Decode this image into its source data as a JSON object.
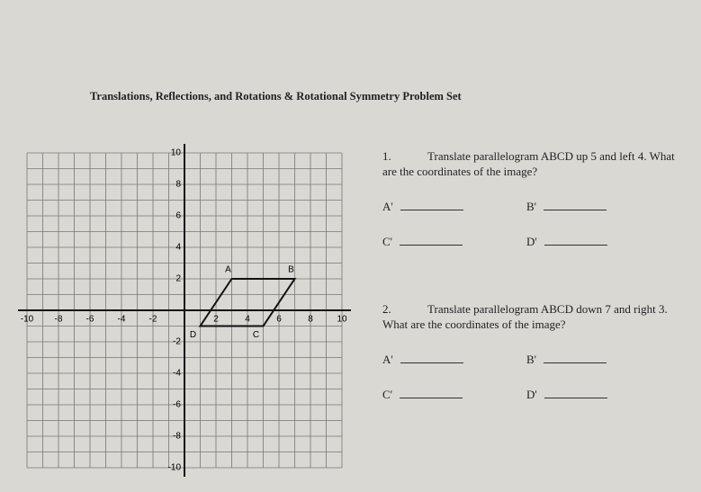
{
  "header": {
    "title": "Translations, Reflections, and Rotations & Rotational Symmetry Problem Set"
  },
  "graph": {
    "xticks": [
      -10,
      -8,
      -6,
      -4,
      -2,
      2,
      4,
      6,
      8,
      10
    ],
    "yticks": [
      10,
      8,
      6,
      4,
      2,
      -2,
      -4,
      -6,
      -8,
      -10
    ],
    "vertices": [
      {
        "label": "A",
        "x": 3,
        "y": 2
      },
      {
        "label": "B",
        "x": 7,
        "y": 2
      },
      {
        "label": "C",
        "x": 5,
        "y": -1
      },
      {
        "label": "D",
        "x": 1,
        "y": -1
      }
    ]
  },
  "problems": [
    {
      "number": "1.",
      "text": "Translate parallelogram ABCD up 5 and left 4. What are the coordinates of the image?",
      "answers": [
        "A'",
        "B'",
        "C'",
        "D'"
      ]
    },
    {
      "number": "2.",
      "text": "Translate parallelogram ABCD down 7 and right 3. What are the coordinates of the image?",
      "answers": [
        "A'",
        "B'",
        "C'",
        "D'"
      ]
    }
  ]
}
